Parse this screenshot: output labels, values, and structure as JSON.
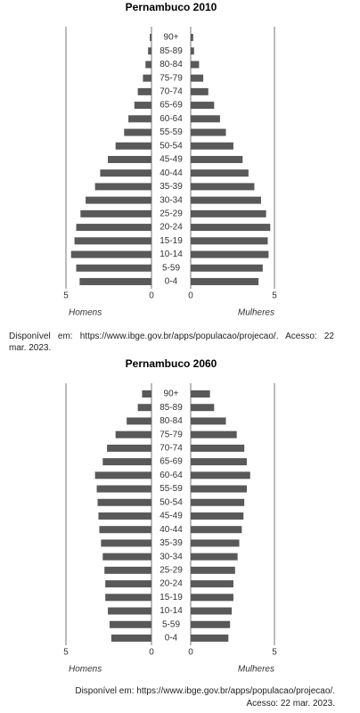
{
  "chart_data": [
    {
      "type": "pyramid",
      "title": "Pernambuco 2010",
      "categories": [
        "90+",
        "85-89",
        "80-84",
        "75-79",
        "70-74",
        "65-69",
        "60-64",
        "55-59",
        "50-54",
        "45-49",
        "40-44",
        "35-39",
        "30-34",
        "25-29",
        "20-24",
        "15-19",
        "10-14",
        "5-59",
        "0-4"
      ],
      "series": [
        {
          "name": "Homens",
          "color": "#595959",
          "values": [
            0.1,
            0.2,
            0.35,
            0.5,
            0.8,
            1.0,
            1.35,
            1.6,
            2.1,
            2.55,
            3.0,
            3.3,
            3.85,
            4.15,
            4.4,
            4.5,
            4.7,
            4.4,
            4.2
          ]
        },
        {
          "name": "Mulheres",
          "color": "#595959",
          "values": [
            0.15,
            0.2,
            0.5,
            0.75,
            1.05,
            1.4,
            1.75,
            2.1,
            2.55,
            3.1,
            3.45,
            3.8,
            4.2,
            4.5,
            4.75,
            4.6,
            4.65,
            4.3,
            4.05
          ]
        }
      ],
      "xlim": [
        0,
        5
      ],
      "xticks": [
        0,
        5
      ],
      "note": [
        "Disponível em: https://www.ibge.gov.br/apps/populacao/projecao/. Acesso: 22",
        "mar. 2023."
      ],
      "note_align": "justify"
    },
    {
      "type": "pyramid",
      "title": "Pernambuco 2060",
      "categories": [
        "90+",
        "85-89",
        "80-84",
        "75-79",
        "70-74",
        "65-69",
        "60-64",
        "55-59",
        "50-54",
        "45-49",
        "40-44",
        "35-39",
        "30-34",
        "25-29",
        "20-24",
        "15-19",
        "10-14",
        "5-59",
        "0-4"
      ],
      "series": [
        {
          "name": "Homens",
          "color": "#595959",
          "values": [
            0.55,
            0.8,
            1.45,
            2.1,
            2.6,
            2.85,
            3.3,
            3.2,
            3.15,
            3.1,
            3.05,
            2.95,
            2.85,
            2.75,
            2.7,
            2.7,
            2.55,
            2.45,
            2.35
          ]
        },
        {
          "name": "Mulheres",
          "color": "#595959",
          "values": [
            1.15,
            1.4,
            2.1,
            2.75,
            3.2,
            3.35,
            3.55,
            3.35,
            3.2,
            3.15,
            3.05,
            2.9,
            2.8,
            2.65,
            2.55,
            2.55,
            2.45,
            2.35,
            2.25
          ]
        }
      ],
      "xlim": [
        0,
        5
      ],
      "xticks": [
        0,
        5
      ],
      "note": [
        "Disponível em: https://www.ibge.gov.br/apps/populacao/projecao/.",
        "Acesso: 22 mar. 2023."
      ],
      "note_align": "right"
    }
  ]
}
